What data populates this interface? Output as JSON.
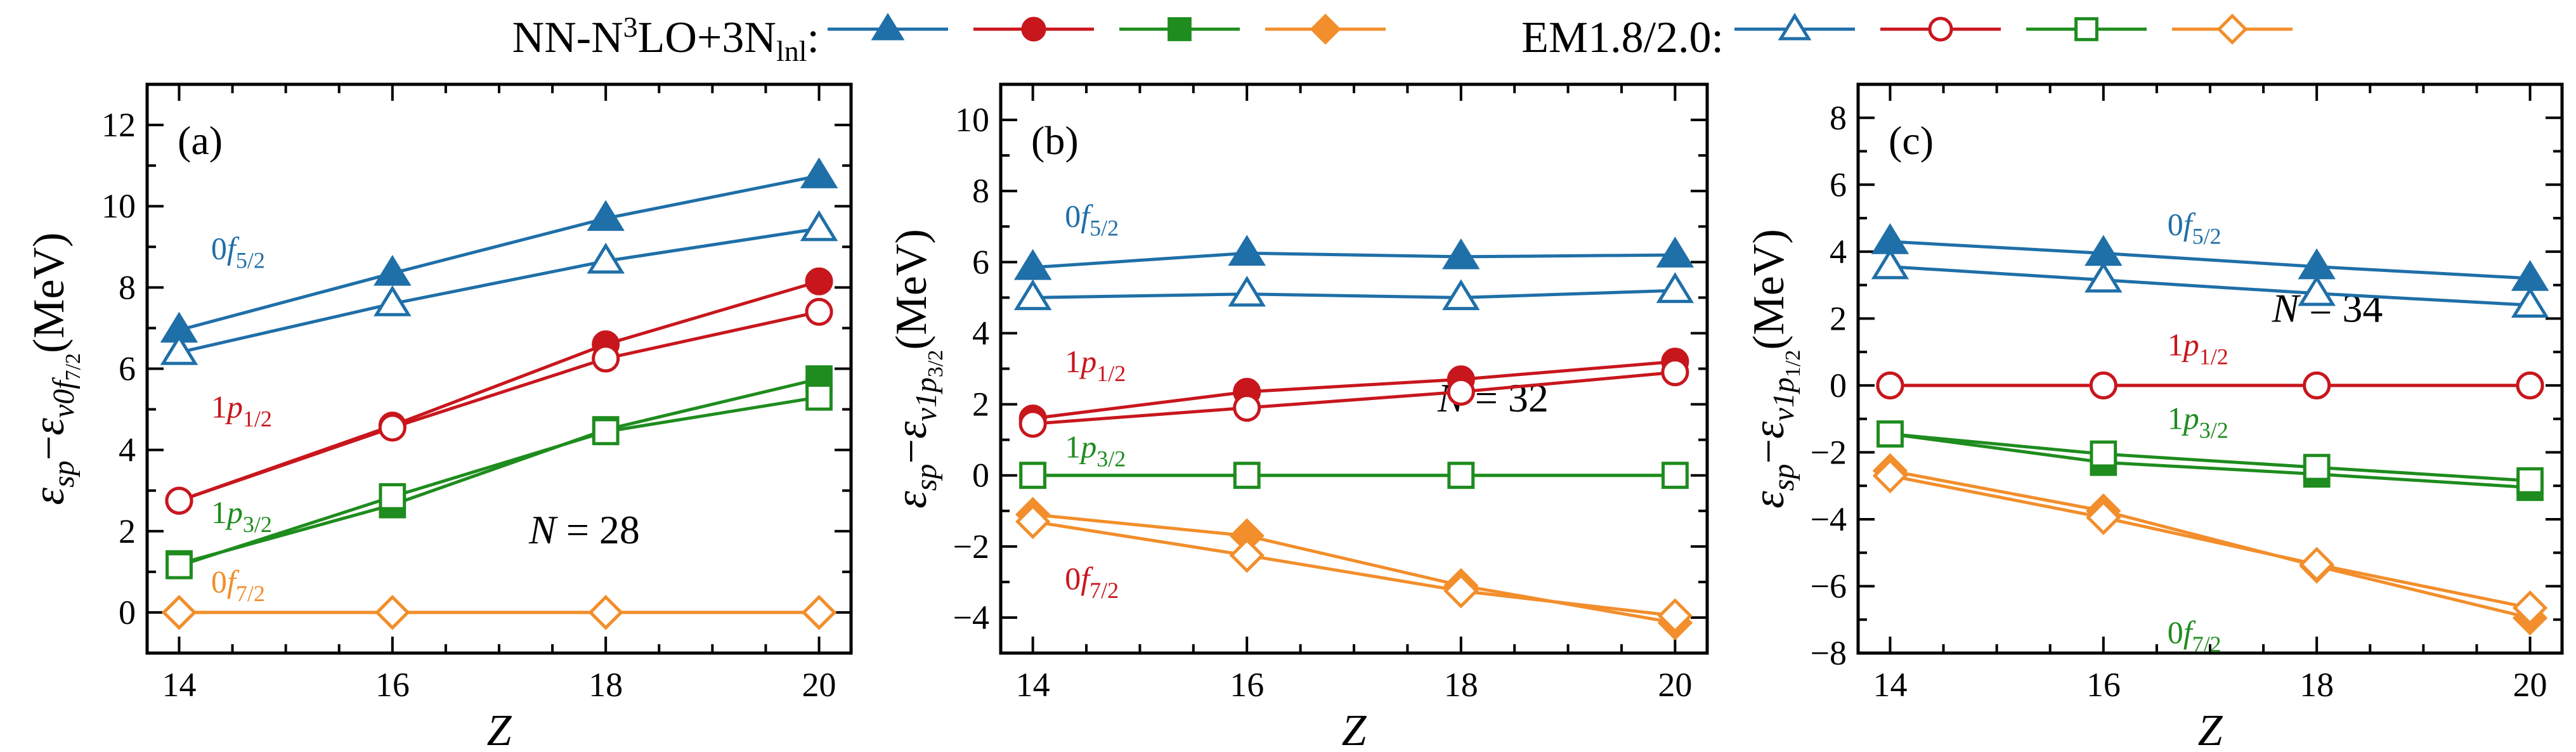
{
  "legend": {
    "nn_text": "NN-N³LO+3N_lnl:",
    "nn_base": "NN-N",
    "nn_sup": "3",
    "nn_mid": "LO+3N",
    "nn_sub": "lnl",
    "nn_colon": ":",
    "em_text": "EM1.8/2.0:"
  },
  "colors": {
    "f52": "#1f6fa8",
    "p12": "#c8161d",
    "p32": "#1e8c1e",
    "f72": "#f28e2b"
  },
  "chart_data": [
    {
      "type": "line",
      "panel_label": "(a)",
      "annotation": "N = 28",
      "annotation_italic": "N",
      "annotation_rest": " = 28",
      "xlabel": "Z",
      "ylabel": "ε_sp − ε_ν0f7/2 (MeV)",
      "ylabel_parts": {
        "e1": "ε",
        "s1": "sp",
        "minus": "−",
        "e2": "ε",
        "s2": "ν0f",
        "s3": "7/2",
        "unit": "(MeV)"
      },
      "x": [
        14,
        16,
        18,
        20
      ],
      "xlim": [
        13.7,
        20.3
      ],
      "ylim": [
        -1,
        13
      ],
      "yticks": [
        0,
        2,
        4,
        6,
        8,
        10,
        12
      ],
      "xticks": [
        14,
        16,
        18,
        20
      ],
      "series": [
        {
          "name": "0f5/2",
          "group": "NN-N3LO+3Nlnl",
          "marker": "triangle",
          "filled": true,
          "color": "#1f6fa8",
          "values": [
            6.95,
            8.35,
            9.7,
            10.75
          ]
        },
        {
          "name": "0f5/2",
          "group": "EM1.8/2.0",
          "marker": "triangle",
          "filled": false,
          "color": "#1f6fa8",
          "values": [
            6.4,
            7.6,
            8.65,
            9.45
          ]
        },
        {
          "name": "1p1/2",
          "group": "NN-N3LO+3Nlnl",
          "marker": "circle",
          "filled": true,
          "color": "#c8161d",
          "values": [
            2.75,
            4.6,
            6.6,
            8.15
          ]
        },
        {
          "name": "1p1/2",
          "group": "EM1.8/2.0",
          "marker": "circle",
          "filled": false,
          "color": "#c8161d",
          "values": [
            2.75,
            4.55,
            6.25,
            7.4
          ]
        },
        {
          "name": "1p3/2",
          "group": "NN-N3LO+3Nlnl",
          "marker": "square",
          "filled": true,
          "color": "#1e8c1e",
          "values": [
            1.2,
            2.65,
            4.5,
            5.75
          ]
        },
        {
          "name": "1p3/2",
          "group": "EM1.8/2.0",
          "marker": "square",
          "filled": false,
          "color": "#1e8c1e",
          "values": [
            1.15,
            2.85,
            4.45,
            5.3
          ]
        },
        {
          "name": "0f7/2",
          "group": "NN-N3LO+3Nlnl",
          "marker": "diamond",
          "filled": true,
          "color": "#f28e2b",
          "values": [
            0,
            0,
            0,
            0
          ]
        },
        {
          "name": "0f7/2",
          "group": "EM1.8/2.0",
          "marker": "diamond",
          "filled": false,
          "color": "#f28e2b",
          "values": [
            0,
            0,
            0,
            0
          ]
        }
      ],
      "labels": [
        {
          "base": "0f",
          "sub": "5/2",
          "color": "#1f6fa8",
          "at": [
            14.3,
            8.7
          ]
        },
        {
          "base": "1p",
          "sub": "1/2",
          "color": "#c8161d",
          "at": [
            14.3,
            4.8
          ]
        },
        {
          "base": "1p",
          "sub": "3/2",
          "color": "#1e8c1e",
          "at": [
            14.3,
            2.2
          ]
        },
        {
          "base": "0f",
          "sub": "7/2",
          "color": "#f28e2b",
          "at": [
            14.3,
            0.5
          ]
        }
      ]
    },
    {
      "type": "line",
      "panel_label": "(b)",
      "annotation": "N = 32",
      "annotation_italic": "N",
      "annotation_rest": " = 32",
      "xlabel": "Z",
      "ylabel": "ε_sp − ε_ν1p3/2 (MeV)",
      "ylabel_parts": {
        "e1": "ε",
        "s1": "sp",
        "minus": "−",
        "e2": "ε",
        "s2": "ν1p",
        "s3": "3/2",
        "unit": "(MeV)"
      },
      "x": [
        14,
        16,
        18,
        20
      ],
      "xlim": [
        13.7,
        20.3
      ],
      "ylim": [
        -5,
        11
      ],
      "yticks": [
        -4,
        -2,
        0,
        2,
        4,
        6,
        8,
        10
      ],
      "xticks": [
        14,
        16,
        18,
        20
      ],
      "series": [
        {
          "name": "0f5/2",
          "group": "NN-N3LO+3Nlnl",
          "marker": "triangle",
          "filled": true,
          "color": "#1f6fa8",
          "values": [
            5.85,
            6.25,
            6.15,
            6.2
          ]
        },
        {
          "name": "0f5/2",
          "group": "EM1.8/2.0",
          "marker": "triangle",
          "filled": false,
          "color": "#1f6fa8",
          "values": [
            5.0,
            5.1,
            5.0,
            5.2
          ]
        },
        {
          "name": "1p1/2",
          "group": "NN-N3LO+3Nlnl",
          "marker": "circle",
          "filled": true,
          "color": "#c8161d",
          "values": [
            1.6,
            2.35,
            2.7,
            3.2
          ]
        },
        {
          "name": "1p1/2",
          "group": "EM1.8/2.0",
          "marker": "circle",
          "filled": false,
          "color": "#c8161d",
          "values": [
            1.45,
            1.9,
            2.35,
            2.9
          ]
        },
        {
          "name": "1p3/2",
          "group": "NN-N3LO+3Nlnl",
          "marker": "square",
          "filled": true,
          "color": "#1e8c1e",
          "values": [
            0,
            0,
            0,
            0
          ]
        },
        {
          "name": "1p3/2",
          "group": "EM1.8/2.0",
          "marker": "square",
          "filled": false,
          "color": "#1e8c1e",
          "values": [
            0,
            0,
            0,
            0
          ]
        },
        {
          "name": "0f7/2",
          "group": "NN-N3LO+3Nlnl",
          "marker": "diamond",
          "filled": true,
          "color": "#f28e2b",
          "values": [
            -1.1,
            -1.7,
            -3.1,
            -4.15
          ]
        },
        {
          "name": "0f7/2",
          "group": "EM1.8/2.0",
          "marker": "diamond",
          "filled": false,
          "color": "#f28e2b",
          "values": [
            -1.3,
            -2.25,
            -3.25,
            -3.95
          ]
        }
      ],
      "labels": [
        {
          "base": "0f",
          "sub": "5/2",
          "color": "#1f6fa8",
          "at": [
            14.3,
            7.0
          ]
        },
        {
          "base": "1p",
          "sub": "1/2",
          "color": "#c8161d",
          "at": [
            14.3,
            2.9
          ]
        },
        {
          "base": "1p",
          "sub": "3/2",
          "color": "#1e8c1e",
          "at": [
            14.3,
            0.5
          ]
        },
        {
          "base": "0f",
          "sub": "7/2",
          "color": "#c8161d",
          "at": [
            14.3,
            -3.2
          ]
        }
      ]
    },
    {
      "type": "line",
      "panel_label": "(c)",
      "annotation": "N = 34",
      "annotation_italic": "N",
      "annotation_rest": " = 34",
      "xlabel": "Z",
      "ylabel": "ε_sp − ε_ν1p1/2 (MeV)",
      "ylabel_parts": {
        "e1": "ε",
        "s1": "sp",
        "minus": "−",
        "e2": "ε",
        "s2": "ν1p",
        "s3": "1/2",
        "unit": "(MeV)"
      },
      "x": [
        14,
        16,
        18,
        20
      ],
      "xlim": [
        13.7,
        20.3
      ],
      "ylim": [
        -8,
        9
      ],
      "yticks": [
        -8,
        -6,
        -4,
        -2,
        0,
        2,
        4,
        6,
        8
      ],
      "xticks": [
        14,
        16,
        18,
        20
      ],
      "series": [
        {
          "name": "0f5/2",
          "group": "NN-N3LO+3Nlnl",
          "marker": "triangle",
          "filled": true,
          "color": "#1f6fa8",
          "values": [
            4.3,
            3.95,
            3.55,
            3.2
          ]
        },
        {
          "name": "0f5/2",
          "group": "EM1.8/2.0",
          "marker": "triangle",
          "filled": false,
          "color": "#1f6fa8",
          "values": [
            3.55,
            3.15,
            2.75,
            2.4
          ]
        },
        {
          "name": "1p1/2",
          "group": "NN-N3LO+3Nlnl",
          "marker": "circle",
          "filled": true,
          "color": "#c8161d",
          "values": [
            0,
            0,
            0,
            0
          ]
        },
        {
          "name": "1p1/2",
          "group": "EM1.8/2.0",
          "marker": "circle",
          "filled": false,
          "color": "#c8161d",
          "values": [
            0,
            0,
            0,
            0
          ]
        },
        {
          "name": "1p3/2",
          "group": "NN-N3LO+3Nlnl",
          "marker": "square",
          "filled": true,
          "color": "#1e8c1e",
          "values": [
            -1.45,
            -2.3,
            -2.65,
            -3.05
          ]
        },
        {
          "name": "1p3/2",
          "group": "EM1.8/2.0",
          "marker": "square",
          "filled": false,
          "color": "#1e8c1e",
          "values": [
            -1.45,
            -2.05,
            -2.45,
            -2.85
          ]
        },
        {
          "name": "0f7/2",
          "group": "NN-N3LO+3Nlnl",
          "marker": "diamond",
          "filled": true,
          "color": "#f28e2b",
          "values": [
            -2.55,
            -3.75,
            -5.4,
            -6.95
          ]
        },
        {
          "name": "0f7/2",
          "group": "EM1.8/2.0",
          "marker": "diamond",
          "filled": false,
          "color": "#f28e2b",
          "values": [
            -2.7,
            -3.95,
            -5.35,
            -6.65
          ]
        }
      ],
      "labels": [
        {
          "base": "0f",
          "sub": "5/2",
          "color": "#1f6fa8",
          "at": [
            16.6,
            4.5
          ]
        },
        {
          "base": "1p",
          "sub": "1/2",
          "color": "#c8161d",
          "at": [
            16.6,
            0.9
          ]
        },
        {
          "base": "1p",
          "sub": "3/2",
          "color": "#1e8c1e",
          "at": [
            16.6,
            -1.3
          ]
        },
        {
          "base": "0f",
          "sub": "7/2",
          "color": "#1e8c1e",
          "at": [
            16.6,
            -7.7
          ]
        }
      ]
    }
  ]
}
